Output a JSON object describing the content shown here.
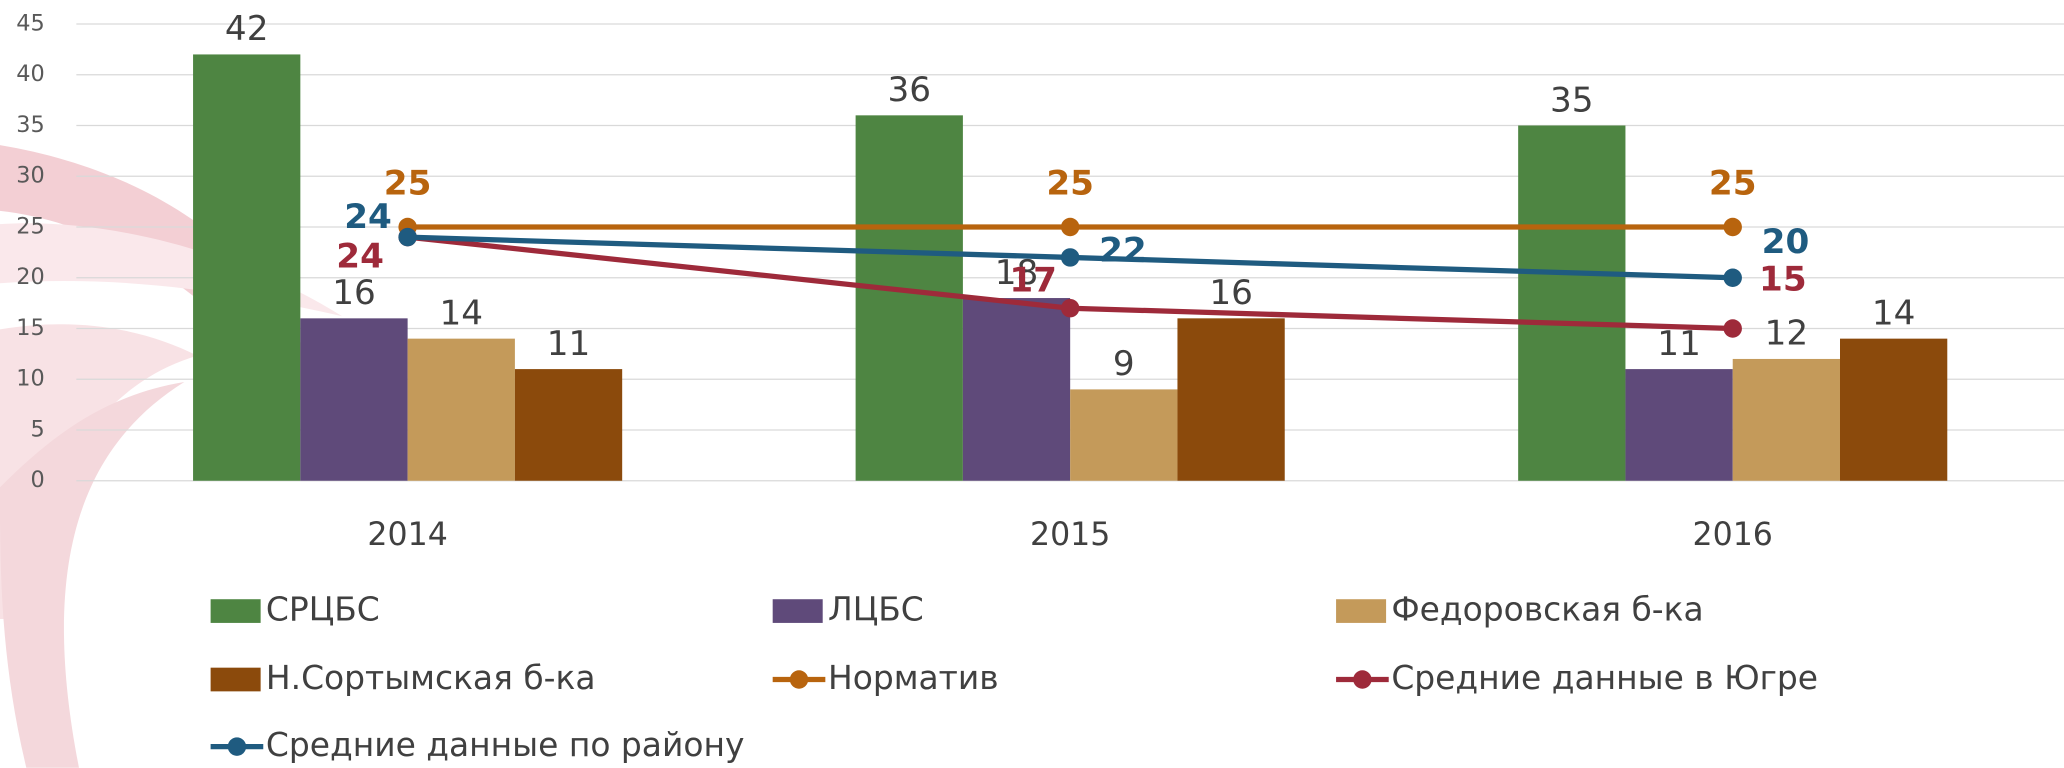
{
  "chart_data": {
    "type": "bar",
    "categories": [
      "2014",
      "2015",
      "2016"
    ],
    "ylim": [
      0,
      45
    ],
    "yticks": [
      0,
      5,
      10,
      15,
      20,
      25,
      30,
      35,
      40,
      45
    ],
    "grid": true,
    "series": [
      {
        "name": "СРЦБС",
        "type": "bar",
        "color": "#4e8542",
        "values": [
          42,
          36,
          35
        ]
      },
      {
        "name": "ЛЦБС",
        "type": "bar",
        "color": "#5f4a7a",
        "values": [
          16,
          18,
          11
        ]
      },
      {
        "name": "Федоровская б-ка",
        "type": "bar",
        "color": "#c49a5a",
        "values": [
          14,
          9,
          12
        ]
      },
      {
        "name": "Н.Сортымская б-ка",
        "type": "bar",
        "color": "#8b4a0c",
        "values": [
          11,
          16,
          14
        ]
      },
      {
        "name": "Норматив",
        "type": "line",
        "color": "#b8640e",
        "values": [
          25,
          25,
          25
        ]
      },
      {
        "name": "Средние данные в Югре",
        "type": "line",
        "color": "#9e2a3a",
        "values": [
          24,
          17,
          15
        ]
      },
      {
        "name": "Средние данные по району",
        "type": "line",
        "color": "#1f5b80",
        "values": [
          24,
          22,
          20
        ]
      }
    ]
  }
}
